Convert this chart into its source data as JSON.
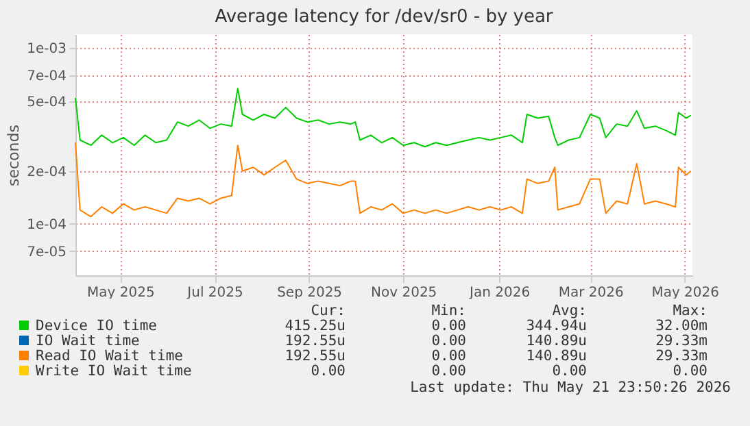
{
  "chart_data": {
    "type": "line",
    "title": "Average latency for /dev/sr0 - by year",
    "ylabel": "seconds",
    "log": true,
    "grid": true,
    "legend": "bottom",
    "ylim": [
      5.1e-05,
      0.0012
    ],
    "yticks": [
      {
        "value": 0.001,
        "label": "1e-03"
      },
      {
        "value": 0.0007,
        "label": "7e-04"
      },
      {
        "value": 0.0005,
        "label": "5e-04"
      },
      {
        "value": 0.0002,
        "label": "2e-04"
      },
      {
        "value": 0.0001,
        "label": "1e-04"
      },
      {
        "value": 7e-05,
        "label": "7e-05"
      }
    ],
    "xlim": [
      "2025-04-17",
      "2026-05-21"
    ],
    "xticks": [
      {
        "value": "2025-05-16",
        "label": "May 2025"
      },
      {
        "value": "2025-07-16",
        "label": "Jul 2025"
      },
      {
        "value": "2025-09-15",
        "label": "Sep 2025"
      },
      {
        "value": "2025-11-15",
        "label": "Nov 2025"
      },
      {
        "value": "2026-01-16",
        "label": "Jan 2026"
      },
      {
        "value": "2026-03-16",
        "label": "Mar 2026"
      },
      {
        "value": "2026-05-16",
        "label": "May 2026"
      }
    ],
    "x": [
      "2025-04-17",
      "2025-04-20",
      "2025-04-27",
      "2025-05-04",
      "2025-05-11",
      "2025-05-18",
      "2025-05-25",
      "2025-06-01",
      "2025-06-08",
      "2025-06-15",
      "2025-06-22",
      "2025-06-29",
      "2025-07-06",
      "2025-07-13",
      "2025-07-20",
      "2025-07-27",
      "2025-07-31",
      "2025-08-03",
      "2025-08-10",
      "2025-08-17",
      "2025-08-24",
      "2025-08-31",
      "2025-09-07",
      "2025-09-14",
      "2025-09-21",
      "2025-09-28",
      "2025-10-05",
      "2025-10-12",
      "2025-10-15",
      "2025-10-18",
      "2025-10-25",
      "2025-11-01",
      "2025-11-08",
      "2025-11-15",
      "2025-11-22",
      "2025-11-29",
      "2025-12-06",
      "2025-12-13",
      "2025-12-20",
      "2025-12-27",
      "2026-01-03",
      "2026-01-10",
      "2026-01-17",
      "2026-01-24",
      "2026-01-31",
      "2026-02-03",
      "2026-02-10",
      "2026-02-17",
      "2026-02-21",
      "2026-02-23",
      "2026-03-02",
      "2026-03-09",
      "2026-03-16",
      "2026-03-22",
      "2026-03-26",
      "2026-04-02",
      "2026-04-09",
      "2026-04-15",
      "2026-04-20",
      "2026-04-27",
      "2026-05-04",
      "2026-05-10",
      "2026-05-12",
      "2026-05-17",
      "2026-05-20"
    ],
    "series": [
      {
        "name": "Device IO time",
        "color": "#00cc00",
        "values": [
          0.00052,
          0.0003,
          0.00028,
          0.00032,
          0.00029,
          0.00031,
          0.00028,
          0.00032,
          0.00029,
          0.0003,
          0.00038,
          0.00036,
          0.00039,
          0.00035,
          0.00037,
          0.00036,
          0.00059,
          0.00042,
          0.00039,
          0.00042,
          0.0004,
          0.00046,
          0.0004,
          0.00038,
          0.00039,
          0.00037,
          0.00038,
          0.00037,
          0.00038,
          0.0003,
          0.00032,
          0.00029,
          0.00031,
          0.00028,
          0.00029,
          0.000275,
          0.00029,
          0.00028,
          0.00029,
          0.0003,
          0.00031,
          0.0003,
          0.00031,
          0.00032,
          0.00029,
          0.00042,
          0.0004,
          0.00041,
          0.00031,
          0.00028,
          0.0003,
          0.00031,
          0.00042,
          0.0004,
          0.00031,
          0.00037,
          0.00036,
          0.00044,
          0.00035,
          0.00036,
          0.00034,
          0.00032,
          0.00043,
          0.0004,
          0.000415
        ]
      },
      {
        "name": "IO Wait time",
        "color": "#0066b3",
        "values": [
          null,
          null,
          null,
          null,
          null,
          null,
          null,
          null,
          null,
          null,
          null,
          null,
          null,
          null,
          null,
          null,
          null,
          null,
          null,
          null,
          null,
          null,
          null,
          null,
          null,
          null,
          null,
          null,
          null,
          null,
          null,
          null,
          null,
          null,
          null,
          null,
          null,
          null,
          null,
          null,
          null,
          null,
          null,
          null,
          null,
          null,
          null,
          null,
          null,
          null,
          null,
          null,
          null,
          null,
          null,
          null,
          null,
          null,
          null,
          null,
          null,
          null,
          null,
          null,
          null
        ]
      },
      {
        "name": "Read IO Wait time",
        "color": "#ff8000",
        "values": [
          0.00029,
          0.00012,
          0.00011,
          0.000125,
          0.000115,
          0.00013,
          0.00012,
          0.000125,
          0.00012,
          0.000115,
          0.00014,
          0.000135,
          0.00014,
          0.00013,
          0.00014,
          0.000145,
          0.00028,
          0.0002,
          0.00021,
          0.00019,
          0.00021,
          0.00023,
          0.00018,
          0.00017,
          0.000175,
          0.00017,
          0.000165,
          0.000175,
          0.000175,
          0.000115,
          0.000125,
          0.00012,
          0.00013,
          0.000115,
          0.00012,
          0.000115,
          0.00012,
          0.000115,
          0.00012,
          0.000125,
          0.00012,
          0.000125,
          0.00012,
          0.000125,
          0.000115,
          0.00018,
          0.00017,
          0.000175,
          0.00021,
          0.00012,
          0.000125,
          0.00013,
          0.00018,
          0.00018,
          0.000115,
          0.000135,
          0.00013,
          0.00022,
          0.00013,
          0.000135,
          0.00013,
          0.000125,
          0.00021,
          0.00019,
          0.0002
        ]
      },
      {
        "name": "Write IO Wait time",
        "color": "#ffcc00",
        "values": [
          null,
          null,
          null,
          null,
          null,
          null,
          null,
          null,
          null,
          null,
          null,
          null,
          null,
          null,
          null,
          null,
          null,
          null,
          null,
          null,
          null,
          null,
          null,
          null,
          null,
          null,
          null,
          null,
          null,
          null,
          null,
          null,
          null,
          null,
          null,
          null,
          null,
          null,
          null,
          null,
          null,
          null,
          null,
          null,
          null,
          null,
          null,
          null,
          null,
          null,
          null,
          null,
          null,
          null,
          null,
          null,
          null,
          null,
          null,
          null,
          null,
          null,
          null,
          null,
          null
        ]
      }
    ],
    "annotations": [
      "Cur:",
      "Min:",
      "Avg:",
      "Max:",
      "415.25u",
      "0.00",
      "344.94u",
      "32.00m",
      "192.55u",
      "0.00",
      "140.89u",
      "29.33m",
      "192.55u",
      "0.00",
      "140.89u",
      "29.33m",
      "0.00",
      "0.00",
      "0.00",
      "0.00",
      "Last update: Thu May 21 23:50:26 2026"
    ]
  }
}
